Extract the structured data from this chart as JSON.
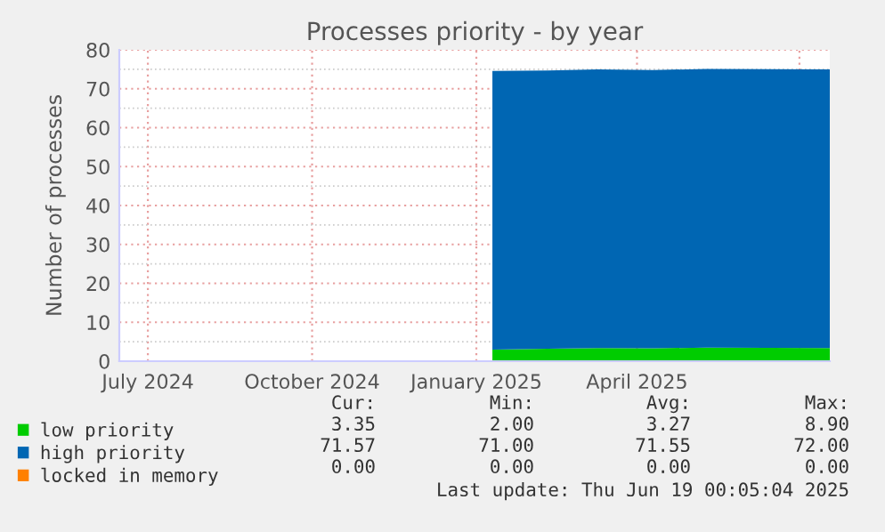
{
  "chart_data": {
    "type": "area",
    "stacked": true,
    "title": "Processes priority - by year",
    "ylabel": "Number of processes",
    "xlim": [
      "2024-06-15",
      "2025-07-18"
    ],
    "ylim": [
      0,
      80
    ],
    "yticks": [
      0,
      10,
      20,
      30,
      40,
      50,
      60,
      70,
      80
    ],
    "xticks": [
      {
        "value": "2024-07-01",
        "label": "July 2024"
      },
      {
        "value": "2024-10-01",
        "label": "October 2024"
      },
      {
        "value": "2025-01-01",
        "label": "January 2025"
      },
      {
        "value": "2025-04-01",
        "label": "April 2025"
      },
      {
        "value": "2025-07-01",
        "label": null
      }
    ],
    "grid": true,
    "legend": "bottom left",
    "series": [
      {
        "name": "low priority",
        "color": "#00cc00",
        "x": [
          "2025-01-10",
          "2025-02-10",
          "2025-03-10",
          "2025-04-10",
          "2025-05-10",
          "2025-07-18"
        ],
        "values": [
          3.0,
          3.2,
          3.4,
          3.3,
          3.5,
          3.4
        ]
      },
      {
        "name": "high priority",
        "color": "#0066b3",
        "x": [
          "2025-01-10",
          "2025-02-10",
          "2025-03-10",
          "2025-04-10",
          "2025-05-10",
          "2025-07-18"
        ],
        "values": [
          71.6,
          71.5,
          71.6,
          71.5,
          71.6,
          71.6
        ]
      },
      {
        "name": "locked in memory",
        "color": "#ff8000"
      }
    ],
    "annotations": [
      "Cur:",
      "Min:",
      "Avg:",
      "Max:",
      "3.35",
      "2.00",
      "3.27",
      "8.90",
      "71.57",
      "71.00",
      "71.55",
      "72.00",
      "0.00",
      "0.00",
      "0.00",
      "0.00",
      "Last update: Thu Jun 19 00:05:04 2025"
    ]
  }
}
